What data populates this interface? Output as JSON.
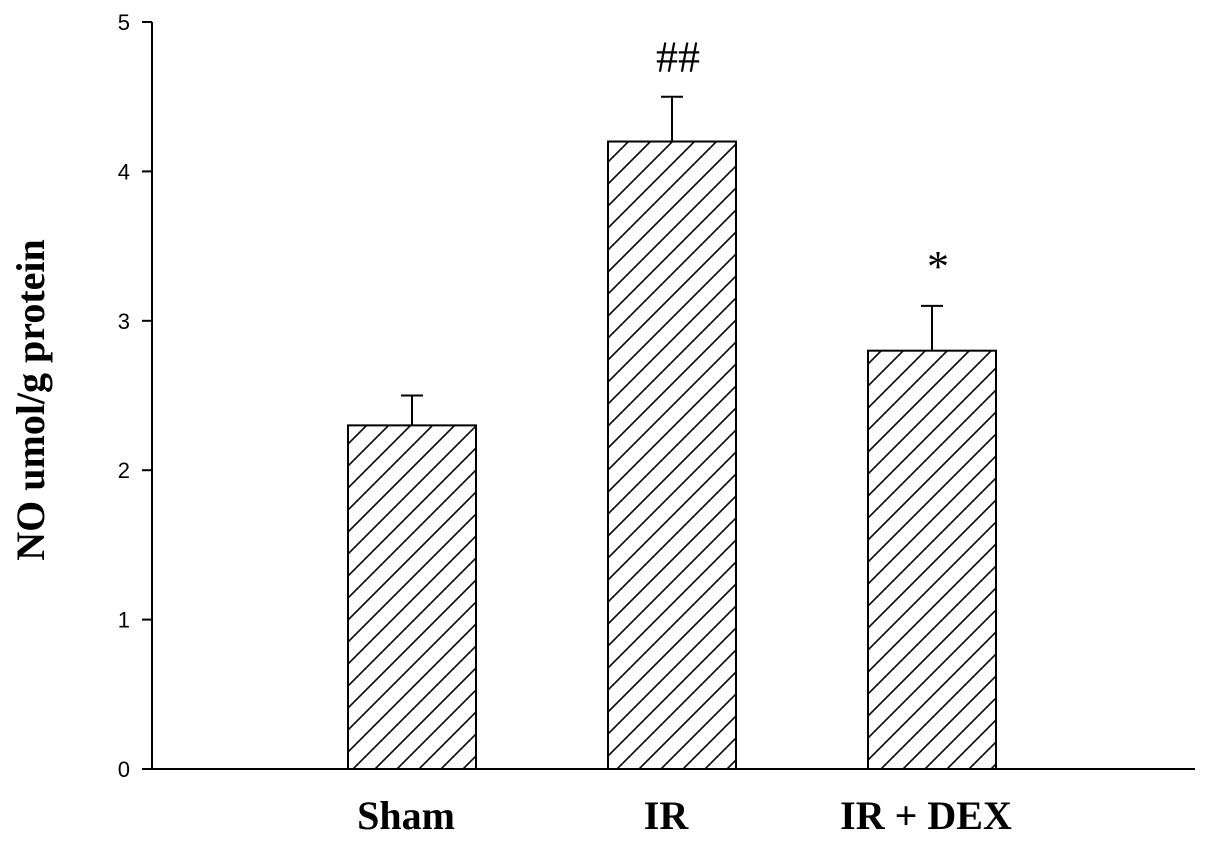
{
  "chart_data": {
    "type": "bar",
    "title": "",
    "xlabel": "",
    "ylabel": "NO umol/g protein",
    "categories": [
      "Sham",
      "IR",
      "IR + DEX"
    ],
    "values": [
      2.3,
      4.2,
      2.8
    ],
    "errors": [
      0.2,
      0.3,
      0.3
    ],
    "annotations": [
      "",
      "##",
      "*"
    ],
    "ylim": [
      0,
      5
    ],
    "yticks": [
      0,
      1,
      2,
      3,
      4,
      5
    ],
    "grid": false,
    "bar_fill": "diagonal-hatch",
    "colors": {
      "bar_stroke": "#000000",
      "hatch": "#000000",
      "background": "#ffffff"
    }
  }
}
